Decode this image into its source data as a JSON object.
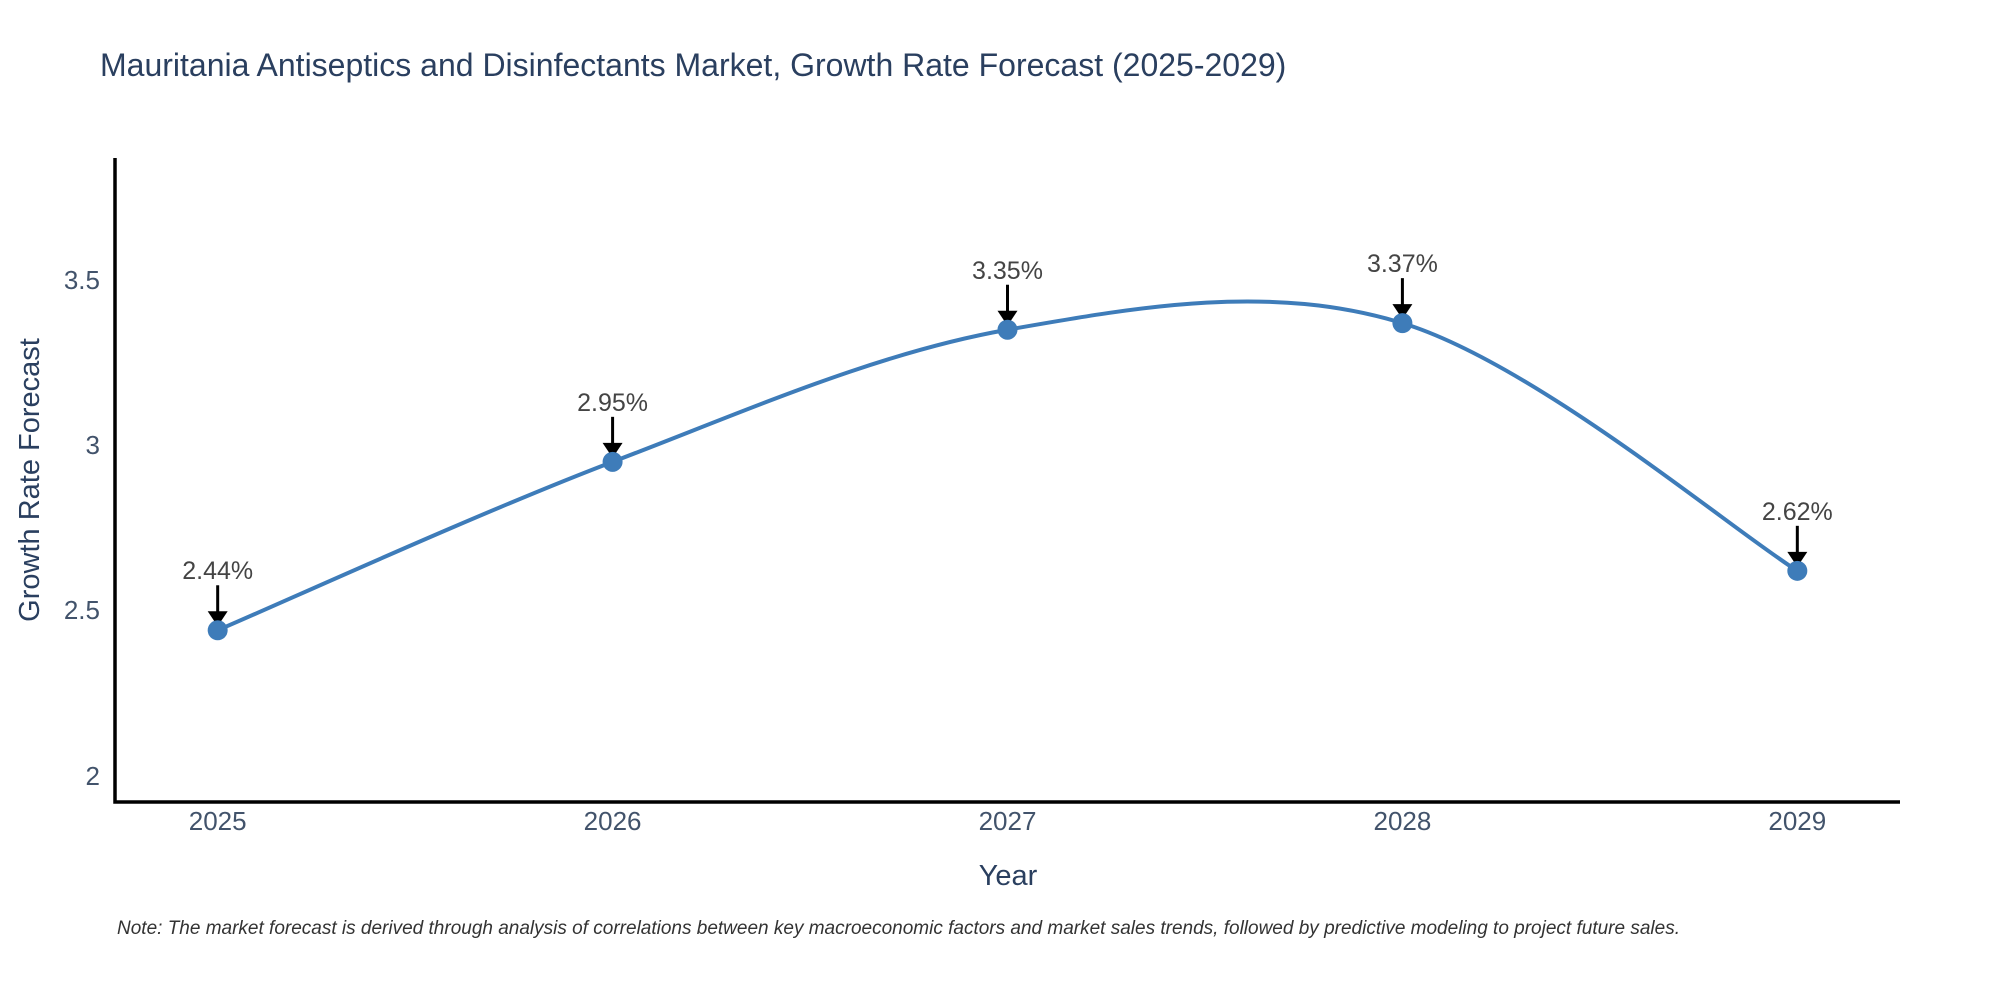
{
  "title": "Mauritania Antiseptics and Disinfectants Market, Growth Rate Forecast (2025-2029)",
  "note": "Note: The market forecast is derived through analysis of correlations between key macroeconomic factors and market sales trends, followed by predictive modeling to project future sales.",
  "colors": {
    "background": "#ffffff",
    "line": "#3e7cb9",
    "marker": "#3e7cb9",
    "axis": "#000000",
    "arrow": "#000000",
    "title_text": "#2a3f5f",
    "tick_text": "#42536b",
    "annotation_text": "#444444",
    "note_text": "#333333"
  },
  "chart_data": {
    "type": "line",
    "title": "Mauritania Antiseptics and Disinfectants Market, Growth Rate Forecast (2025-2029)",
    "xlabel": "Year",
    "ylabel": "Growth Rate Forecast",
    "x": [
      2025,
      2026,
      2027,
      2028,
      2029
    ],
    "series": [
      {
        "name": "Growth Rate Forecast",
        "values": [
          2.44,
          2.95,
          3.35,
          3.37,
          2.62
        ]
      }
    ],
    "point_labels": [
      "2.44%",
      "2.95%",
      "3.35%",
      "3.37%",
      "2.62%"
    ],
    "x_ticks": {
      "values": [
        2025,
        2026,
        2027,
        2028,
        2029
      ],
      "labels": [
        "2025",
        "2026",
        "2027",
        "2028",
        "2029"
      ]
    },
    "y_ticks": {
      "values": [
        2,
        2.5,
        3,
        3.5
      ],
      "labels": [
        "2",
        "2.5",
        "3",
        "3.5"
      ]
    },
    "x_range": [
      2024.74,
      2029.26
    ],
    "y_range": [
      1.92,
      3.87
    ],
    "line_shape": "spline",
    "grid": false,
    "legend_position": "none",
    "annotation_arrows": true
  }
}
